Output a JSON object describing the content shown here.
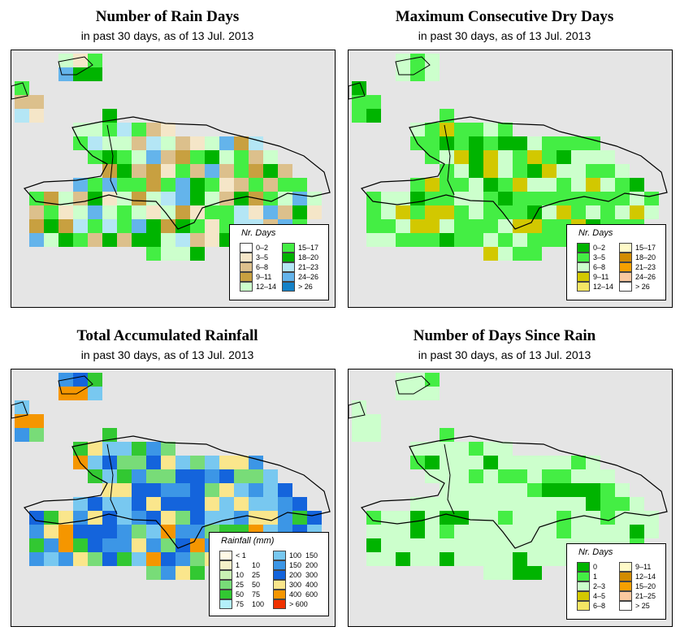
{
  "panels": [
    {
      "id": "rain-days",
      "title": "Number of Rain Days",
      "subtitle": "in past 30 days, as of  13 Jul. 2013",
      "legend": {
        "title": "Nr. Days",
        "items": [
          {
            "label": "0–2",
            "color": "#ffffff"
          },
          {
            "label": "3–5",
            "color": "#f5e6c8"
          },
          {
            "label": "6–8",
            "color": "#dcc08c"
          },
          {
            "label": "9–11",
            "color": "#c8a040"
          },
          {
            "label": "12–14",
            "color": "#ccffcc"
          },
          {
            "label": "15–17",
            "color": "#44ee44"
          },
          {
            "label": "18–20",
            "color": "#00b400"
          },
          {
            "label": "21–23",
            "color": "#b4e6f5"
          },
          {
            "label": "24–26",
            "color": "#64b4eb"
          },
          {
            "label": "> 26",
            "color": "#1482c8"
          }
        ]
      }
    },
    {
      "id": "dry-days",
      "title": "Maximum Consecutive Dry Days",
      "subtitle": "in past 30 days, as of  13 Jul. 2013",
      "legend": {
        "title": "Nr. Days",
        "items": [
          {
            "label": "0–2",
            "color": "#00b400"
          },
          {
            "label": "3–5",
            "color": "#44ee44"
          },
          {
            "label": "6–8",
            "color": "#ccffcc"
          },
          {
            "label": "9–11",
            "color": "#d2c800"
          },
          {
            "label": "12–14",
            "color": "#f5e664"
          },
          {
            "label": "15–17",
            "color": "#fffac8"
          },
          {
            "label": "18–20",
            "color": "#d28c00"
          },
          {
            "label": "21–23",
            "color": "#f5a000"
          },
          {
            "label": "24–26",
            "color": "#fac8a0"
          },
          {
            "label": "> 26",
            "color": "#ffffff"
          }
        ]
      }
    },
    {
      "id": "rainfall",
      "title": "Total Accumulated Rainfall",
      "subtitle": "in past 30 days, as of  13 Jul. 2013",
      "legend": {
        "title": "Rainfall (mm)",
        "items": [
          {
            "label": "< 1",
            "label2": "",
            "color": "#fffae6"
          },
          {
            "label": "1",
            "label2": "10",
            "color": "#f5f0c8"
          },
          {
            "label": "10",
            "label2": "25",
            "color": "#c8f0b4"
          },
          {
            "label": "25",
            "label2": "50",
            "color": "#78dc78"
          },
          {
            "label": "50",
            "label2": "75",
            "color": "#32c832"
          },
          {
            "label": "75",
            "label2": "100",
            "color": "#b4f0fa"
          },
          {
            "label": "100",
            "label2": "150",
            "color": "#78c8f0"
          },
          {
            "label": "150",
            "label2": "200",
            "color": "#3c96e6"
          },
          {
            "label": "200",
            "label2": "300",
            "color": "#1464dc"
          },
          {
            "label": "300",
            "label2": "400",
            "color": "#fae68c"
          },
          {
            "label": "400",
            "label2": "600",
            "color": "#f59600"
          },
          {
            "label": "> 600",
            "label2": "",
            "color": "#f03200"
          }
        ]
      }
    },
    {
      "id": "since-rain",
      "title": "Number of Days Since Rain",
      "subtitle": "in past 30 days, as of  13 Jul. 2013",
      "legend": {
        "title": "Nr. Days",
        "items": [
          {
            "label": "0",
            "color": "#00b400"
          },
          {
            "label": "1",
            "color": "#44ee44"
          },
          {
            "label": "2–3",
            "color": "#ccffcc"
          },
          {
            "label": "4–5",
            "color": "#d2c800"
          },
          {
            "label": "6–8",
            "color": "#f5e664"
          },
          {
            "label": "9–11",
            "color": "#fffac8"
          },
          {
            "label": "12–14",
            "color": "#d28c00"
          },
          {
            "label": "15–20",
            "color": "#f5a000"
          },
          {
            "label": "21–25",
            "color": "#fac8a0"
          },
          {
            "label": "> 25",
            "color": "#ffffff"
          }
        ]
      }
    }
  ]
}
